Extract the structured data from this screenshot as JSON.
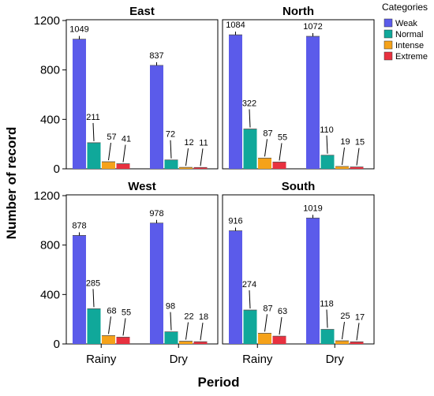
{
  "chart_data": {
    "type": "bar",
    "xlabel": "Period",
    "ylabel": "Number of record",
    "categories": [
      "Rainy",
      "Dry"
    ],
    "ylim": [
      0,
      1200
    ],
    "yticks": [
      0,
      400,
      800,
      1200
    ],
    "legend": {
      "title": "Categories",
      "placement": "top-right",
      "items": [
        {
          "name": "Weak",
          "color": "#5B5BEA"
        },
        {
          "name": "Normal",
          "color": "#10A89A"
        },
        {
          "name": "Intense",
          "color": "#F5A21A"
        },
        {
          "name": "Extreme",
          "color": "#E8313F"
        }
      ]
    },
    "panels": [
      {
        "title": "East",
        "series": [
          {
            "name": "Weak",
            "values": [
              1049,
              837
            ]
          },
          {
            "name": "Normal",
            "values": [
              211,
              72
            ]
          },
          {
            "name": "Intense",
            "values": [
              57,
              12
            ]
          },
          {
            "name": "Extreme",
            "values": [
              41,
              11
            ]
          }
        ]
      },
      {
        "title": "North",
        "series": [
          {
            "name": "Weak",
            "values": [
              1084,
              1072
            ]
          },
          {
            "name": "Normal",
            "values": [
              322,
              110
            ]
          },
          {
            "name": "Intense",
            "values": [
              87,
              19
            ]
          },
          {
            "name": "Extreme",
            "values": [
              55,
              15
            ]
          }
        ]
      },
      {
        "title": "West",
        "series": [
          {
            "name": "Weak",
            "values": [
              878,
              978
            ]
          },
          {
            "name": "Normal",
            "values": [
              285,
              98
            ]
          },
          {
            "name": "Intense",
            "values": [
              68,
              22
            ]
          },
          {
            "name": "Extreme",
            "values": [
              55,
              18
            ]
          }
        ]
      },
      {
        "title": "South",
        "series": [
          {
            "name": "Weak",
            "values": [
              916,
              1019
            ]
          },
          {
            "name": "Normal",
            "values": [
              274,
              118
            ]
          },
          {
            "name": "Intense",
            "values": [
              87,
              25
            ]
          },
          {
            "name": "Extreme",
            "values": [
              63,
              17
            ]
          }
        ]
      }
    ]
  }
}
